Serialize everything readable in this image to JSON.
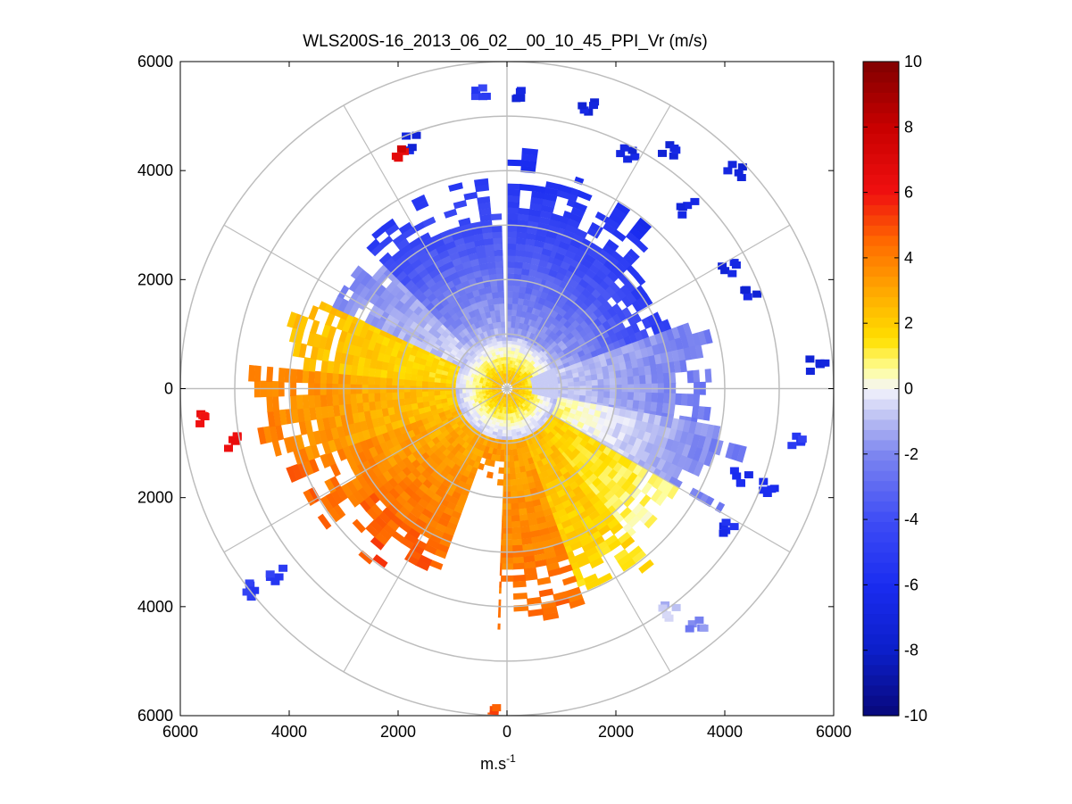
{
  "chart_data": {
    "type": "heatmap",
    "subtype": "polar-ppi",
    "title": "WLS200S-16_2013_06_02__00_10_45_PPI_Vr (m/s)",
    "xlabel": "m.s",
    "xlabel_sup": "-1",
    "ylabel": "",
    "xlim": [
      -6000,
      6000
    ],
    "ylim": [
      -6000,
      6000
    ],
    "x_ticks": [
      {
        "value": -6000,
        "label": "6000"
      },
      {
        "value": -4000,
        "label": "4000"
      },
      {
        "value": -2000,
        "label": "2000"
      },
      {
        "value": 0,
        "label": "0"
      },
      {
        "value": 2000,
        "label": "2000"
      },
      {
        "value": 4000,
        "label": "4000"
      },
      {
        "value": 6000,
        "label": "6000"
      }
    ],
    "y_ticks": [
      {
        "value": 6000,
        "label": "6000"
      },
      {
        "value": 4000,
        "label": "4000"
      },
      {
        "value": 2000,
        "label": "2000"
      },
      {
        "value": 0,
        "label": "0"
      },
      {
        "value": -2000,
        "label": "2000"
      },
      {
        "value": -4000,
        "label": "4000"
      },
      {
        "value": -6000,
        "label": "6000"
      }
    ],
    "polar_grid": {
      "range_rings_m": [
        1000,
        2000,
        3000,
        4000,
        5000,
        6000
      ],
      "spokes_deg": [
        0,
        30,
        60,
        90,
        120,
        150,
        180,
        210,
        240,
        270,
        300,
        330
      ]
    },
    "colorbar": {
      "range": [
        -10,
        10
      ],
      "ticks": [
        {
          "value": 10,
          "label": "10"
        },
        {
          "value": 8,
          "label": "8"
        },
        {
          "value": 6,
          "label": "6"
        },
        {
          "value": 4,
          "label": "4"
        },
        {
          "value": 2,
          "label": "2"
        },
        {
          "value": 0,
          "label": "0"
        },
        {
          "value": -2,
          "label": "-2"
        },
        {
          "value": -4,
          "label": "-4"
        },
        {
          "value": -6,
          "label": "-6"
        },
        {
          "value": -8,
          "label": "-8"
        },
        {
          "value": -10,
          "label": "-10"
        }
      ],
      "stops": [
        {
          "value": -10,
          "color": "#08087a"
        },
        {
          "value": -8,
          "color": "#0c1fc9"
        },
        {
          "value": -6,
          "color": "#1a2cf0"
        },
        {
          "value": -4,
          "color": "#3f4df5"
        },
        {
          "value": -2,
          "color": "#7d86f0"
        },
        {
          "value": -1,
          "color": "#b4b9f2"
        },
        {
          "value": 0,
          "color": "#f4f4fb"
        },
        {
          "value": 0.6,
          "color": "#fefe9a"
        },
        {
          "value": 1.5,
          "color": "#ffe000"
        },
        {
          "value": 3,
          "color": "#ffa800"
        },
        {
          "value": 4.5,
          "color": "#ff6a00"
        },
        {
          "value": 6,
          "color": "#f01010"
        },
        {
          "value": 8,
          "color": "#c80000"
        },
        {
          "value": 10,
          "color": "#800000"
        }
      ]
    },
    "sectors": [
      {
        "az_from": 0,
        "az_to": 20,
        "r_from": 0,
        "r_to": 4100,
        "v_near": -1.5,
        "v_far": -6.0
      },
      {
        "az_from": 20,
        "az_to": 45,
        "r_from": 0,
        "r_to": 3800,
        "v_near": -1.5,
        "v_far": -6.0
      },
      {
        "az_from": 45,
        "az_to": 70,
        "r_from": 0,
        "r_to": 3000,
        "v_near": -1.0,
        "v_far": -5.0
      },
      {
        "az_from": 70,
        "az_to": 100,
        "r_from": 0,
        "r_to": 3800,
        "v_near": -0.6,
        "v_far": -2.5
      },
      {
        "az_from": 100,
        "az_to": 120,
        "r_from": 0,
        "r_to": 4300,
        "v_near": 0.8,
        "v_far": -2.5
      },
      {
        "az_from": 120,
        "az_to": 140,
        "r_from": 0,
        "r_to": 3600,
        "v_near": 2.0,
        "v_far": 0.6
      },
      {
        "az_from": 140,
        "az_to": 160,
        "r_from": 0,
        "r_to": 3900,
        "v_near": 2.5,
        "v_far": 1.5
      },
      {
        "az_from": 160,
        "az_to": 182,
        "r_from": 0,
        "r_to": 4100,
        "v_near": 3.0,
        "v_far": 4.5
      },
      {
        "az_from": 182,
        "az_to": 200,
        "r_from": 0,
        "r_to": 1600,
        "v_near": 3.2,
        "v_far": 3.8
      },
      {
        "az_from": 200,
        "az_to": 232,
        "r_from": 0,
        "r_to": 3800,
        "v_near": 2.8,
        "v_far": 5.0
      },
      {
        "az_from": 232,
        "az_to": 250,
        "r_from": 0,
        "r_to": 4000,
        "v_near": 2.5,
        "v_far": 4.5
      },
      {
        "az_from": 250,
        "az_to": 275,
        "r_from": 0,
        "r_to": 4400,
        "v_near": 2.0,
        "v_far": 4.0
      },
      {
        "az_from": 275,
        "az_to": 295,
        "r_from": 0,
        "r_to": 4000,
        "v_near": 1.5,
        "v_far": 2.5
      },
      {
        "az_from": 295,
        "az_to": 315,
        "r_from": 0,
        "r_to": 3500,
        "v_near": -0.5,
        "v_far": -2.0
      },
      {
        "az_from": 315,
        "az_to": 358,
        "r_from": 0,
        "r_to": 3600,
        "v_near": -1.0,
        "v_far": -5.0
      }
    ],
    "near_range_disk": {
      "r_to": 900,
      "v_inner": 3.0,
      "v_outer": -0.8
    },
    "scatter_points": [
      {
        "x": -500,
        "y": 5500,
        "v": -5.0
      },
      {
        "x": 300,
        "y": 5400,
        "v": -7.0
      },
      {
        "x": 1500,
        "y": 5200,
        "v": -7.0
      },
      {
        "x": 2200,
        "y": 4300,
        "v": -7.0
      },
      {
        "x": 3000,
        "y": 4400,
        "v": -7.0
      },
      {
        "x": 3300,
        "y": 3300,
        "v": -7.0
      },
      {
        "x": 4100,
        "y": 2200,
        "v": -7.0
      },
      {
        "x": 4500,
        "y": 1700,
        "v": -7.0
      },
      {
        "x": 4200,
        "y": 4000,
        "v": -7.0
      },
      {
        "x": 5700,
        "y": 400,
        "v": -7.0
      },
      {
        "x": -1800,
        "y": 4500,
        "v": -7.0
      },
      {
        "x": -2000,
        "y": 4300,
        "v": 7.0
      },
      {
        "x": -5500,
        "y": -500,
        "v": 6.0
      },
      {
        "x": -5000,
        "y": -1000,
        "v": 6.5
      },
      {
        "x": -4200,
        "y": -3400,
        "v": -5.0
      },
      {
        "x": -4700,
        "y": -3700,
        "v": -5.0
      },
      {
        "x": -300,
        "y": -5950,
        "v": 5.0
      },
      {
        "x": 3000,
        "y": -4100,
        "v": -1.0
      },
      {
        "x": 3500,
        "y": -4300,
        "v": -2.0
      },
      {
        "x": 4300,
        "y": -1600,
        "v": -6.0
      },
      {
        "x": 4800,
        "y": -1800,
        "v": -6.0
      },
      {
        "x": 5300,
        "y": -1000,
        "v": -5.0
      },
      {
        "x": 4100,
        "y": -2600,
        "v": -6.0
      }
    ]
  }
}
